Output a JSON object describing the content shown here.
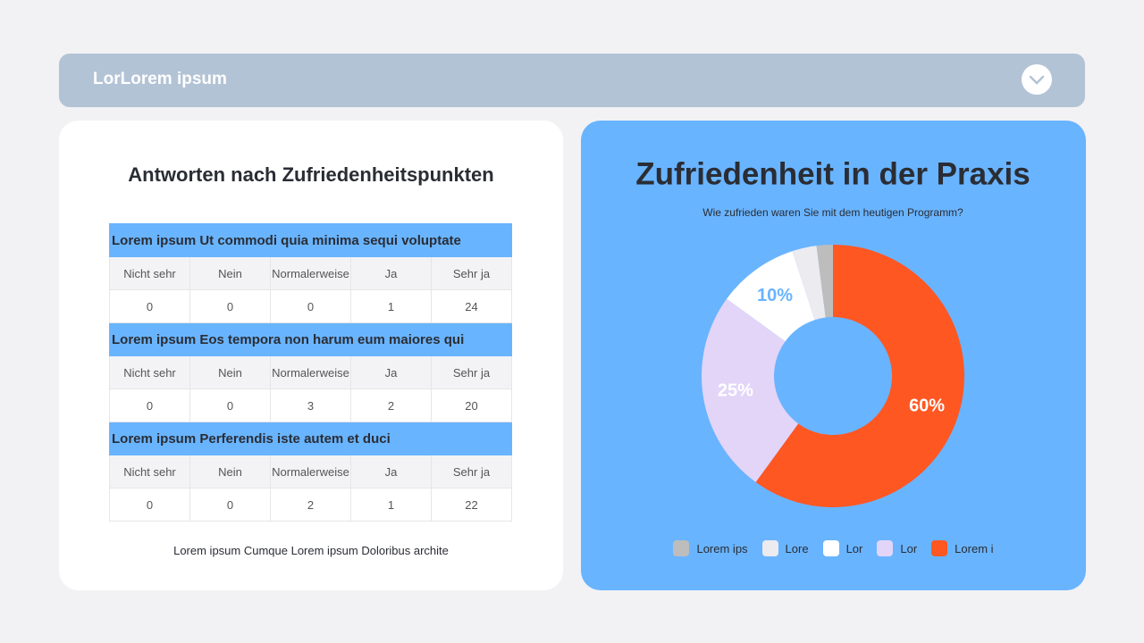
{
  "header": {
    "title": "LorLorem ipsum"
  },
  "table": {
    "title": "Antworten nach Zufriedenheitspunkten",
    "sections": [
      {
        "title": "Lorem ipsum Ut commodi quia minima sequi voluptate",
        "columns": [
          "Nicht sehr",
          "Nein",
          "Normalerweise",
          "Ja",
          "Sehr ja"
        ],
        "values": [
          0,
          0,
          0,
          1,
          24
        ]
      },
      {
        "title": "Lorem ipsum Eos tempora non harum eum maiores qui",
        "columns": [
          "Nicht sehr",
          "Nein",
          "Normalerweise",
          "Ja",
          "Sehr ja"
        ],
        "values": [
          0,
          0,
          3,
          2,
          20
        ]
      },
      {
        "title": "Lorem ipsum Perferendis iste autem et duci",
        "columns": [
          "Nicht sehr",
          "Nein",
          "Normalerweise",
          "Ja",
          "Sehr ja"
        ],
        "values": [
          0,
          0,
          2,
          1,
          22
        ]
      }
    ],
    "footnote": "Lorem ipsum Cumque Lorem ipsum Doloribus archite"
  },
  "chart_data": {
    "type": "donut",
    "title": "Zufriedenheit in der Praxis",
    "subtitle": "Wie zufrieden waren Sie mit dem heutigen Programm?",
    "categories": [
      "Lorem ips",
      "Lore",
      "Lor",
      "Lor",
      "Lorem i"
    ],
    "values": [
      2,
      3,
      10,
      25,
      60
    ],
    "value_labels": [
      null,
      null,
      "10%",
      "25%",
      "60%"
    ],
    "colors": [
      "#bdbdbd",
      "#ebebf0",
      "#ffffff",
      "#e2d5f8",
      "#ff5722"
    ]
  }
}
